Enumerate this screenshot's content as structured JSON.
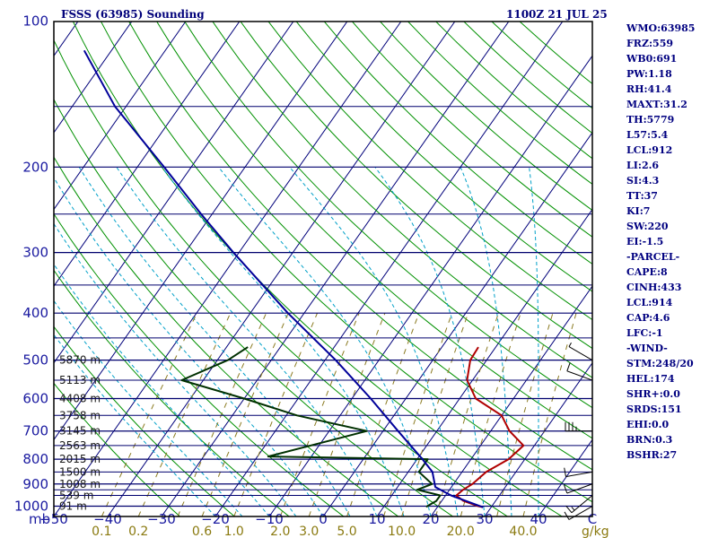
{
  "header": {
    "station": "FSSS (63985) Sounding",
    "time": "1100Z 21 JUL 25"
  },
  "indices": [
    "WMO:63985",
    "FRZ:559",
    "WB0:691",
    "PW:1.18",
    "RH:41.4",
    "MAXT:31.2",
    "TH:5779",
    "L57:5.4",
    "LCL:912",
    "LI:2.6",
    "SI:4.3",
    "TT:37",
    "KI:7",
    "SW:220",
    "EI:-1.5",
    "-PARCEL-",
    "CAPE:8",
    "CINH:433",
    "LCL:914",
    "CAP:4.6",
    "LFC:-1",
    "-WIND-",
    "STM:248/20",
    "HEL:174",
    "SHR+:0.0",
    "SRDS:151",
    "EHI:0.0",
    "BRN:0.3",
    "BSHR:27"
  ],
  "colors": {
    "isobar": "#00006e",
    "temperature": "#b00000",
    "dewpoint": "#003000",
    "parcel": "#00009a",
    "isotherm": "#00007a",
    "dry_adiabat": "#009000",
    "moist_adiabat": "#00a0c8",
    "mixing_ratio": "#8a7a20",
    "text": "#00007a"
  },
  "chart_data": {
    "type": "line",
    "title": "FSSS (63985) Sounding",
    "subtitle": "1100Z 21 JUL 25",
    "x_axis_label_left": "mb",
    "x_axis_label_right": "g/kg",
    "temperature_ticks": [
      -50,
      -40,
      -30,
      -20,
      -10,
      0,
      10,
      20,
      30,
      40,
      50
    ],
    "temperature_tick_labels": [
      "−50",
      "−40",
      "−30",
      "−20",
      "−10",
      "0",
      "10",
      "20",
      "30",
      "40",
      "C"
    ],
    "pressure_ticks": [
      1000,
      900,
      800,
      700,
      600,
      500,
      400,
      300,
      200,
      100
    ],
    "mixing_ratio_labels": [
      "0.1",
      "0.2",
      "0.6",
      "1.0",
      "2.0",
      "3.0",
      "5.0",
      "10.0",
      "20.0",
      "40.0"
    ],
    "mixing_ratio_values": [
      0.1,
      0.2,
      0.6,
      1.0,
      2.0,
      3.0,
      5.0,
      10.0,
      20.0,
      40.0
    ],
    "height_labels": [
      {
        "p": 500,
        "text": "5870 m"
      },
      {
        "p": 550,
        "text": "5113 m"
      },
      {
        "p": 600,
        "text": "4408 m"
      },
      {
        "p": 650,
        "text": "3758 m"
      },
      {
        "p": 700,
        "text": "3145 m"
      },
      {
        "p": 750,
        "text": "2563 m"
      },
      {
        "p": 800,
        "text": "2015 m"
      },
      {
        "p": 850,
        "text": "1500 m"
      },
      {
        "p": 900,
        "text": "1008 m"
      },
      {
        "p": 950,
        "text": "539 m"
      },
      {
        "p": 1000,
        "text": "91 m"
      }
    ],
    "series": [
      {
        "key": "temperature",
        "points": [
          [
            1005,
            28.5
          ],
          [
            1000,
            27.5
          ],
          [
            975,
            24.0
          ],
          [
            950,
            22.0
          ],
          [
            925,
            22.5
          ],
          [
            900,
            23.5
          ],
          [
            850,
            24.5
          ],
          [
            800,
            27.0
          ],
          [
            750,
            28.0
          ],
          [
            700,
            23.5
          ],
          [
            650,
            20.0
          ],
          [
            600,
            13.0
          ],
          [
            550,
            9.0
          ],
          [
            500,
            7.0
          ],
          [
            470,
            6.8
          ]
        ]
      },
      {
        "key": "dewpoint",
        "points": [
          [
            1005,
            18.0
          ],
          [
            1000,
            18.0
          ],
          [
            975,
            19.0
          ],
          [
            950,
            19.0
          ],
          [
            925,
            14.0
          ],
          [
            900,
            16.0
          ],
          [
            850,
            12.0
          ],
          [
            800,
            12.0
          ],
          [
            790,
            -18.0
          ],
          [
            700,
            -3.0
          ],
          [
            650,
            -18.0
          ],
          [
            600,
            -30.0
          ],
          [
            550,
            -44.0
          ],
          [
            500,
            -38.0
          ],
          [
            470,
            -36.0
          ]
        ]
      },
      {
        "key": "parcel",
        "points": [
          [
            1005,
            28.5
          ],
          [
            950,
            21.0
          ],
          [
            913,
            17.0
          ],
          [
            850,
            14.5
          ],
          [
            800,
            11.0
          ],
          [
            700,
            2.8
          ],
          [
            600,
            -6.5
          ],
          [
            500,
            -18.0
          ],
          [
            400,
            -33.0
          ],
          [
            300,
            -51.0
          ],
          [
            250,
            -62.0
          ],
          [
            200,
            -75.0
          ],
          [
            150,
            -92.0
          ],
          [
            115,
            -105.0
          ]
        ]
      }
    ],
    "wind_barbs": [
      {
        "p": 1000,
        "dir": 240,
        "kt": 10
      },
      {
        "p": 950,
        "dir": 230,
        "kt": 15
      },
      {
        "p": 900,
        "dir": 250,
        "kt": 10
      },
      {
        "p": 850,
        "dir": 260,
        "kt": 10
      },
      {
        "p": 700,
        "dir": 270,
        "kt": 35
      },
      {
        "p": 550,
        "dir": 290,
        "kt": 10
      },
      {
        "p": 500,
        "dir": 300,
        "kt": 5
      }
    ]
  }
}
